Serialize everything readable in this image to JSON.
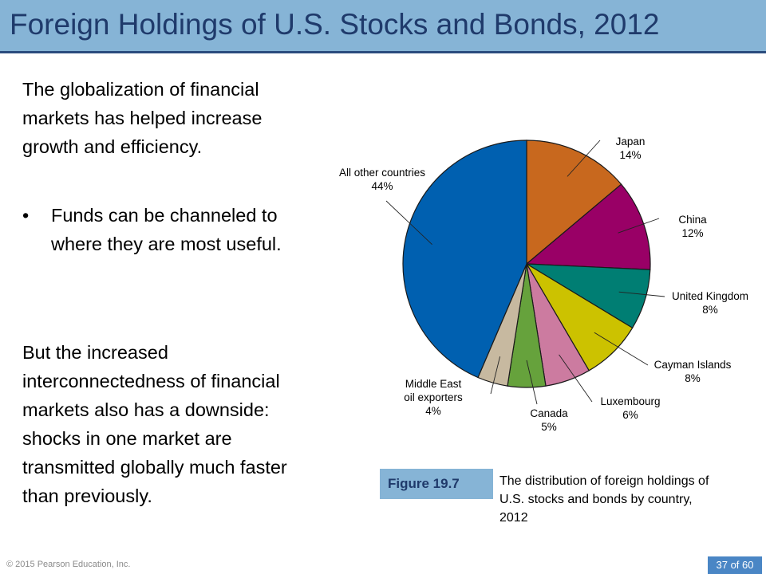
{
  "slide": {
    "title": "Foreign Holdings of U.S. Stocks and Bonds, 2012",
    "paragraph1": "The globalization of financial markets has helped increase growth and efficiency.",
    "bullet": "Funds can be channeled to where they are most useful.",
    "paragraph2": "But the increased interconnectedness of financial markets also has a downside: shocks in one market are transmitted globally much faster than previously.",
    "bullet_glyph": "•"
  },
  "figure": {
    "label": "Figure 19.7",
    "caption": "The distribution of foreign holdings of U.S. stocks and bonds by country, 2012"
  },
  "footer": {
    "copyright": "© 2015 Pearson Education, Inc.",
    "page": "37 of 60"
  },
  "chart_data": {
    "type": "pie",
    "start_angle": "12 o'clock",
    "direction": "clockwise",
    "slices": [
      {
        "name": "Japan",
        "value": 14,
        "label": "14%",
        "color": "#C8681E"
      },
      {
        "name": "China",
        "value": 12,
        "label": "12%",
        "color": "#990066"
      },
      {
        "name": "United Kingdom",
        "value": 8,
        "label": "8%",
        "color": "#007E73"
      },
      {
        "name": "Cayman Islands",
        "value": 8,
        "label": "8%",
        "color": "#CCC200"
      },
      {
        "name": "Luxembourg",
        "value": 6,
        "label": "6%",
        "color": "#CC7BA0"
      },
      {
        "name": "Canada",
        "value": 5,
        "label": "5%",
        "color": "#66A23C"
      },
      {
        "name": "Middle East oil exporters",
        "value": 4,
        "label": "4%",
        "color": "#C7B9A0"
      },
      {
        "name": "All other countries",
        "value": 44,
        "label": "44%",
        "color": "#0060B0"
      }
    ]
  }
}
